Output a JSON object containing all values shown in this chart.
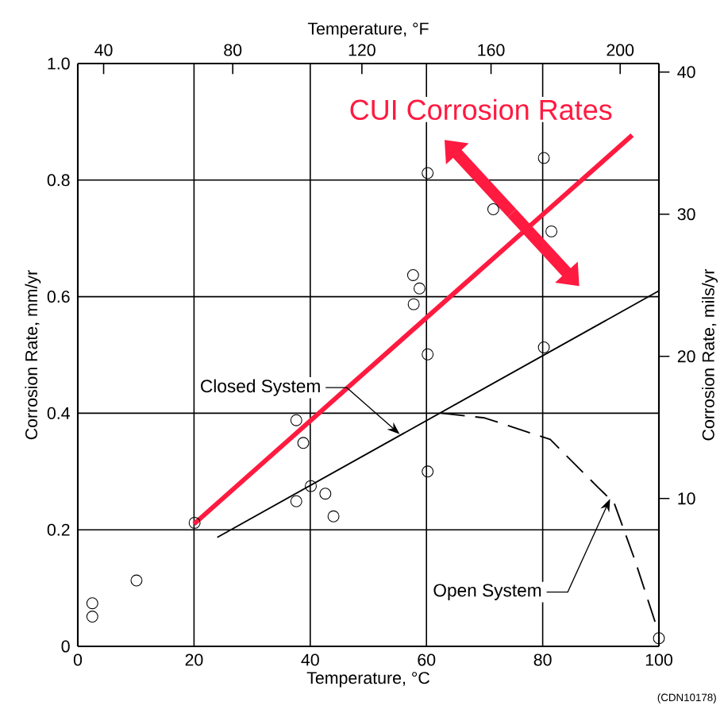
{
  "chart_data": {
    "type": "scatter",
    "xlabel": "Temperature, °C",
    "ylabel": "Corrosion Rate, mm/yr",
    "x2label": "Temperature, °F",
    "y2label": "Corrosion Rate, mils/yr",
    "xlim": [
      0,
      100
    ],
    "xticks": [
      0,
      20,
      40,
      60,
      80,
      100
    ],
    "ylim": [
      0,
      1.0
    ],
    "yticks": [
      0,
      0.2,
      0.4,
      0.6,
      0.8,
      {
        "value": 1,
        "label": "1.0"
      }
    ],
    "x2lim": [
      32,
      212
    ],
    "x2ticks": [
      40,
      80,
      120,
      160,
      200
    ],
    "y2lim": [
      -0.4,
      40.6
    ],
    "y2ticks": [
      10,
      20,
      30,
      40
    ],
    "grid": true,
    "series": [
      {
        "marker": "circle",
        "color": "#000000",
        "x": [
          2.5,
          2.5,
          10.1,
          20.1,
          37.6,
          38.8,
          40.1,
          37.6,
          42.6,
          44,
          60.2,
          80.2,
          71.5,
          81.5,
          57.7,
          58.8,
          57.8,
          60.2,
          80.2,
          60.2,
          100
        ],
        "values": [
          0.074,
          0.051,
          0.113,
          0.212,
          0.388,
          0.349,
          0.275,
          0.249,
          0.262,
          0.223,
          0.812,
          0.838,
          0.75,
          0.712,
          0.637,
          0.614,
          0.587,
          0.501,
          0.513,
          0.3,
          0.014
        ]
      },
      {
        "type": "line",
        "name": "CUI Corrosion Rates",
        "color": "#ff1a40",
        "x": [
          20,
          95.4
        ],
        "values": [
          0.21,
          0.877
        ]
      },
      {
        "type": "line",
        "color": "#000000",
        "x": [
          24,
          100
        ],
        "values": [
          0.187,
          0.61
        ]
      },
      {
        "type": "line",
        "color": "#000000",
        "line_style": "dashed",
        "x": [
          62.6,
          70,
          81.3,
          89.5,
          92.3,
          95.9,
          99.5
        ],
        "values": [
          0.4,
          0.392,
          0.355,
          0.273,
          0.246,
          0.147,
          0.037
        ]
      }
    ],
    "annotations": [
      {
        "text": "Closed System",
        "x": 55.4,
        "y": 0.364
      },
      {
        "text": "Open System",
        "x": 91.6,
        "y": 0.253
      },
      "(CDN10178)"
    ]
  }
}
